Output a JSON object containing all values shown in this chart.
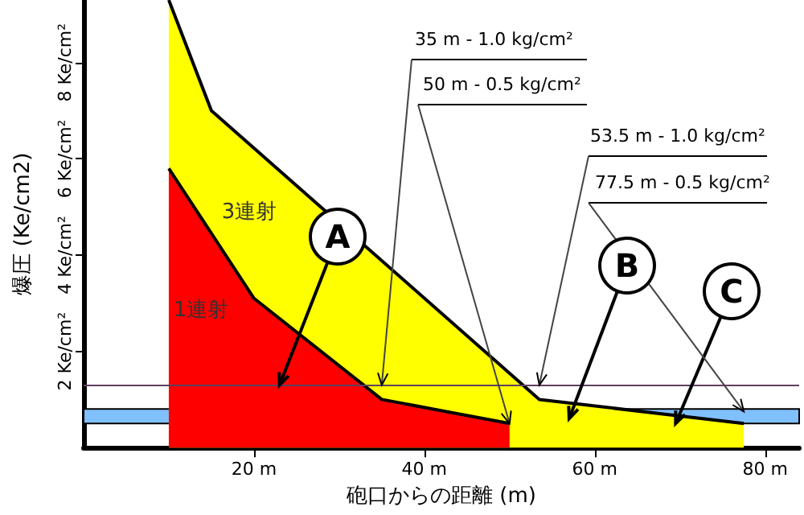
{
  "chart_data": {
    "type": "area",
    "xlabel": "砲口からの距離 (m)",
    "ylabel": "爆圧 (Ke/cm2)",
    "xlim": [
      0,
      84
    ],
    "ylim": [
      0,
      9.3
    ],
    "xticks": [
      {
        "value": 20,
        "label": "20 m"
      },
      {
        "value": 40,
        "label": "40 m"
      },
      {
        "value": 60,
        "label": "60 m"
      },
      {
        "value": 80,
        "label": "80 m"
      }
    ],
    "yticks": [
      {
        "value": 2,
        "label": "2 Ke/cm²"
      },
      {
        "value": 4,
        "label": "4 Ke/cm²"
      },
      {
        "value": 6,
        "label": "6 Ke/cm²"
      },
      {
        "value": 8,
        "label": "8 Ke/cm²"
      }
    ],
    "series": [
      {
        "name": "3連射",
        "color": "#ffff00",
        "x": [
          10,
          15,
          53.5,
          77.5
        ],
        "values": [
          9.3,
          7.0,
          1.0,
          0.5
        ]
      },
      {
        "name": "1連射",
        "color": "#ff0000",
        "x": [
          10,
          20,
          35,
          50
        ],
        "values": [
          5.8,
          3.1,
          1.0,
          0.5
        ]
      }
    ],
    "ref_lines": [
      {
        "axis": "y",
        "value": 1.3,
        "color": "#604060"
      }
    ],
    "bands": [
      {
        "axis": "y",
        "from": 0.5,
        "to": 0.8,
        "color": "#80c0ff"
      }
    ],
    "annotations": [
      {
        "text": "35 m - 1.0 kg/cm²",
        "x": 35,
        "y": 1.3
      },
      {
        "text": "50 m - 0.5 kg/cm²",
        "x": 50,
        "y": 0.5
      },
      {
        "text": "53.5 m - 1.0 kg/cm²",
        "x": 53.5,
        "y": 1.3
      },
      {
        "text": "77.5 m - 0.5 kg/cm²",
        "x": 77.5,
        "y": 0.75
      },
      {
        "text": "A",
        "x": 23,
        "y": 1.3
      },
      {
        "text": "B",
        "x": 57,
        "y": 0.6
      },
      {
        "text": "C",
        "x": 69.5,
        "y": 0.5
      }
    ],
    "grid": false,
    "legend": false,
    "marker": "none",
    "line_style": "solid"
  }
}
